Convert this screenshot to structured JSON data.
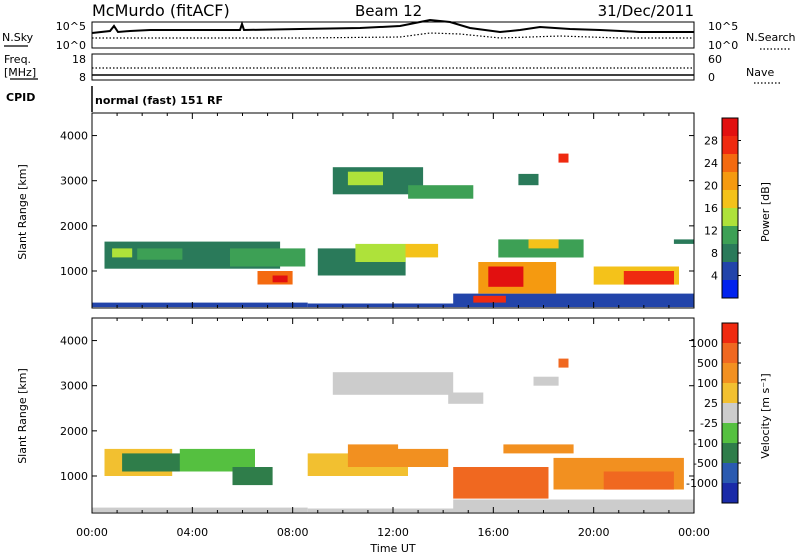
{
  "header": {
    "station": "McMurdo (fitACF)",
    "beam": "Beam 12",
    "date": "31/Dec/2011"
  },
  "top_panels": {
    "nsky_label": "N.Sky",
    "nsky_ticks": [
      "10^5",
      "10^0"
    ],
    "nsearch_label": "N.Search",
    "nsearch_ticks": [
      "10^5",
      "10^0"
    ],
    "freq_label": "Freq.",
    "freq_unit": "[MHz]",
    "freq_ticks": [
      "18",
      "8"
    ],
    "nave_label": "Nave",
    "nave_ticks": [
      "60",
      "0"
    ],
    "cpid_label": "CPID",
    "cpid_value": "normal (fast) 151 RF"
  },
  "chart_data": [
    {
      "type": "heatmap",
      "name": "power",
      "ylabel": "Slant Range [km]",
      "ylim": [
        180,
        4500
      ],
      "yticks": [
        1000,
        2000,
        3000,
        4000
      ],
      "xlim_hours": [
        0,
        24
      ],
      "colorbar": {
        "label": "Power [dB]",
        "ticks": [
          "4",
          "8",
          "12",
          "16",
          "20",
          "24",
          "28"
        ],
        "colors": [
          "#0022ee",
          "#2244aa",
          "#2a7a5a",
          "#3da055",
          "#aee23a",
          "#f4c21a",
          "#f59a10",
          "#f46a10",
          "#ef2a10",
          "#e21010"
        ]
      },
      "regions": [
        {
          "x": [
            0.0,
            8.6
          ],
          "y": [
            200,
            300
          ],
          "level": 1
        },
        {
          "x": [
            8.6,
            24.0
          ],
          "y": [
            200,
            280
          ],
          "level": 1
        },
        {
          "x": [
            0.5,
            7.5
          ],
          "y": [
            1050,
            1650
          ],
          "level": 2
        },
        {
          "x": [
            0.8,
            1.6
          ],
          "y": [
            1300,
            1500
          ],
          "level": 4
        },
        {
          "x": [
            1.8,
            3.6
          ],
          "y": [
            1250,
            1500
          ],
          "level": 3
        },
        {
          "x": [
            6.6,
            8.0
          ],
          "y": [
            700,
            1000
          ],
          "level": 7
        },
        {
          "x": [
            7.2,
            7.8
          ],
          "y": [
            750,
            900
          ],
          "level": 9
        },
        {
          "x": [
            5.5,
            8.5
          ],
          "y": [
            1100,
            1500
          ],
          "level": 3
        },
        {
          "x": [
            9.0,
            12.5
          ],
          "y": [
            900,
            1500
          ],
          "level": 2
        },
        {
          "x": [
            10.5,
            12.5
          ],
          "y": [
            1200,
            1600
          ],
          "level": 4
        },
        {
          "x": [
            12.5,
            13.8
          ],
          "y": [
            1300,
            1600
          ],
          "level": 5
        },
        {
          "x": [
            9.6,
            13.2
          ],
          "y": [
            2700,
            3300
          ],
          "level": 2
        },
        {
          "x": [
            10.2,
            11.6
          ],
          "y": [
            2900,
            3200
          ],
          "level": 4
        },
        {
          "x": [
            12.6,
            15.2
          ],
          "y": [
            2600,
            2900
          ],
          "level": 3
        },
        {
          "x": [
            14.4,
            24.0
          ],
          "y": [
            280,
            500
          ],
          "level": 1
        },
        {
          "x": [
            15.2,
            16.5
          ],
          "y": [
            300,
            450
          ],
          "level": 8
        },
        {
          "x": [
            15.4,
            18.5
          ],
          "y": [
            500,
            1200
          ],
          "level": 6
        },
        {
          "x": [
            15.8,
            17.2
          ],
          "y": [
            650,
            1100
          ],
          "level": 9
        },
        {
          "x": [
            16.2,
            19.6
          ],
          "y": [
            1300,
            1700
          ],
          "level": 3
        },
        {
          "x": [
            17.4,
            18.6
          ],
          "y": [
            1500,
            1700
          ],
          "level": 5
        },
        {
          "x": [
            20.0,
            23.4
          ],
          "y": [
            700,
            1100
          ],
          "level": 5
        },
        {
          "x": [
            21.2,
            23.2
          ],
          "y": [
            700,
            1000
          ],
          "level": 8
        },
        {
          "x": [
            18.6,
            19.0
          ],
          "y": [
            3400,
            3600
          ],
          "level": 8
        },
        {
          "x": [
            17.0,
            17.8
          ],
          "y": [
            2900,
            3150
          ],
          "level": 2
        },
        {
          "x": [
            23.2,
            24.0
          ],
          "y": [
            1600,
            1700
          ],
          "level": 2
        }
      ]
    },
    {
      "type": "heatmap",
      "name": "velocity",
      "ylabel": "Slant Range [km]",
      "xlabel": "Time UT",
      "ylim": [
        180,
        4500
      ],
      "yticks": [
        1000,
        2000,
        3000,
        4000
      ],
      "xlim_hours": [
        0,
        24
      ],
      "xticks": [
        "00:00",
        "04:00",
        "08:00",
        "12:00",
        "16:00",
        "20:00",
        "00:00"
      ],
      "colorbar": {
        "label": "Velocity [m s⁻¹]",
        "ticks": [
          "1000",
          "500",
          "100",
          "25",
          "-25",
          "-100",
          "-500",
          "-1000"
        ],
        "colors": [
          "#1a2aa8",
          "#2a5ab0",
          "#2f7d4a",
          "#55c040",
          "#cccccc",
          "#f2c030",
          "#f29020",
          "#f06820",
          "#ef2a10"
        ]
      },
      "regions": [
        {
          "x": [
            0.0,
            8.6
          ],
          "y": [
            200,
            300
          ],
          "level": 4
        },
        {
          "x": [
            8.6,
            24.0
          ],
          "y": [
            200,
            280
          ],
          "level": 4
        },
        {
          "x": [
            0.5,
            3.2
          ],
          "y": [
            1000,
            1600
          ],
          "level": 5
        },
        {
          "x": [
            1.2,
            3.6
          ],
          "y": [
            1100,
            1500
          ],
          "level": 2
        },
        {
          "x": [
            3.5,
            6.5
          ],
          "y": [
            1100,
            1600
          ],
          "level": 3
        },
        {
          "x": [
            5.6,
            7.2
          ],
          "y": [
            800,
            1200
          ],
          "level": 2
        },
        {
          "x": [
            8.6,
            12.6
          ],
          "y": [
            1000,
            1500
          ],
          "level": 5
        },
        {
          "x": [
            10.2,
            12.2
          ],
          "y": [
            1200,
            1700
          ],
          "level": 6
        },
        {
          "x": [
            12.2,
            14.2
          ],
          "y": [
            1200,
            1600
          ],
          "level": 6
        },
        {
          "x": [
            9.6,
            14.4
          ],
          "y": [
            2800,
            3300
          ],
          "level": 4
        },
        {
          "x": [
            14.2,
            15.6
          ],
          "y": [
            2600,
            2850
          ],
          "level": 4
        },
        {
          "x": [
            14.4,
            18.2
          ],
          "y": [
            500,
            1200
          ],
          "level": 7
        },
        {
          "x": [
            18.4,
            23.6
          ],
          "y": [
            700,
            1400
          ],
          "level": 6
        },
        {
          "x": [
            20.4,
            23.2
          ],
          "y": [
            700,
            1100
          ],
          "level": 7
        },
        {
          "x": [
            14.4,
            24.0
          ],
          "y": [
            280,
            480
          ],
          "level": 4
        },
        {
          "x": [
            16.4,
            19.2
          ],
          "y": [
            1500,
            1700
          ],
          "level": 6
        },
        {
          "x": [
            18.6,
            19.0
          ],
          "y": [
            3400,
            3600
          ],
          "level": 7
        },
        {
          "x": [
            17.6,
            18.6
          ],
          "y": [
            3000,
            3200
          ],
          "level": 4
        }
      ]
    }
  ]
}
